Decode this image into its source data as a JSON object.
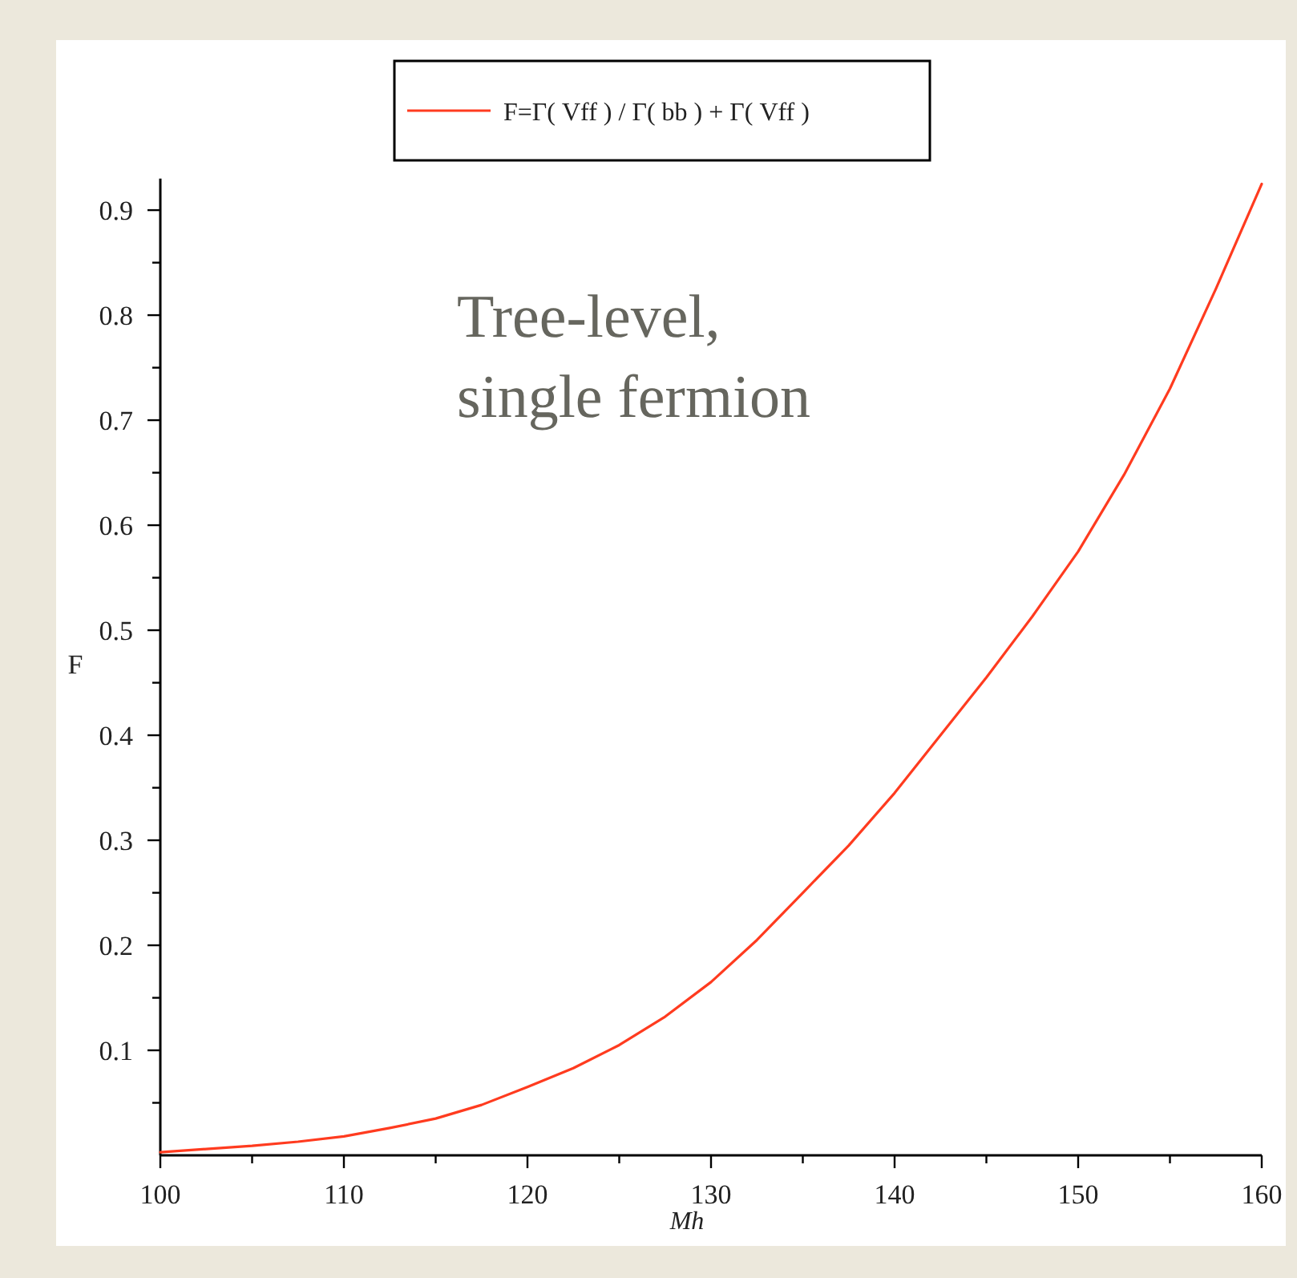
{
  "chart_data": {
    "type": "line",
    "xlabel": "Mh",
    "ylabel": "F",
    "annotations": [
      "Tree-level,\nsingle fermion"
    ],
    "x": [
      100,
      102.5,
      105,
      107.5,
      110,
      112.5,
      115,
      117.5,
      120,
      122.5,
      125,
      127.5,
      130,
      132.5,
      135,
      137.5,
      140,
      142.5,
      145,
      147.5,
      150,
      152.5,
      155,
      157.5,
      160
    ],
    "series": [
      {
        "name": "F=Γ( Vff ) / Γ( bb ) + Γ( Vff )",
        "color": "#ff3b1f",
        "values": [
          0.003,
          0.006,
          0.009,
          0.013,
          0.018,
          0.026,
          0.035,
          0.048,
          0.065,
          0.083,
          0.105,
          0.132,
          0.165,
          0.205,
          0.25,
          0.295,
          0.345,
          0.4,
          0.455,
          0.513,
          0.575,
          0.648,
          0.73,
          0.825,
          0.925
        ]
      }
    ],
    "xlim": [
      100,
      160
    ],
    "ylim": [
      0,
      0.93
    ],
    "xticks": [
      100,
      {
        "value": 105,
        "label": null
      },
      110,
      {
        "value": 115,
        "label": null
      },
      120,
      {
        "value": 125,
        "label": null
      },
      130,
      {
        "value": 135,
        "label": null
      },
      140,
      {
        "value": 145,
        "label": null
      },
      150,
      {
        "value": 155,
        "label": null
      },
      160
    ],
    "yticks": [
      {
        "value": 0.05,
        "label": null
      },
      0.1,
      {
        "value": 0.15,
        "label": null
      },
      0.2,
      {
        "value": 0.25,
        "label": null
      },
      0.3,
      {
        "value": 0.35,
        "label": null
      },
      0.4,
      {
        "value": 0.45,
        "label": null
      },
      0.5,
      {
        "value": 0.55,
        "label": null
      },
      0.6,
      {
        "value": 0.65,
        "label": null
      },
      0.7,
      {
        "value": 0.75,
        "label": null
      },
      0.8,
      {
        "value": 0.85,
        "label": null
      },
      0.9
    ],
    "grid": false,
    "legend": "top",
    "marker": "none",
    "line_style": "solid"
  }
}
